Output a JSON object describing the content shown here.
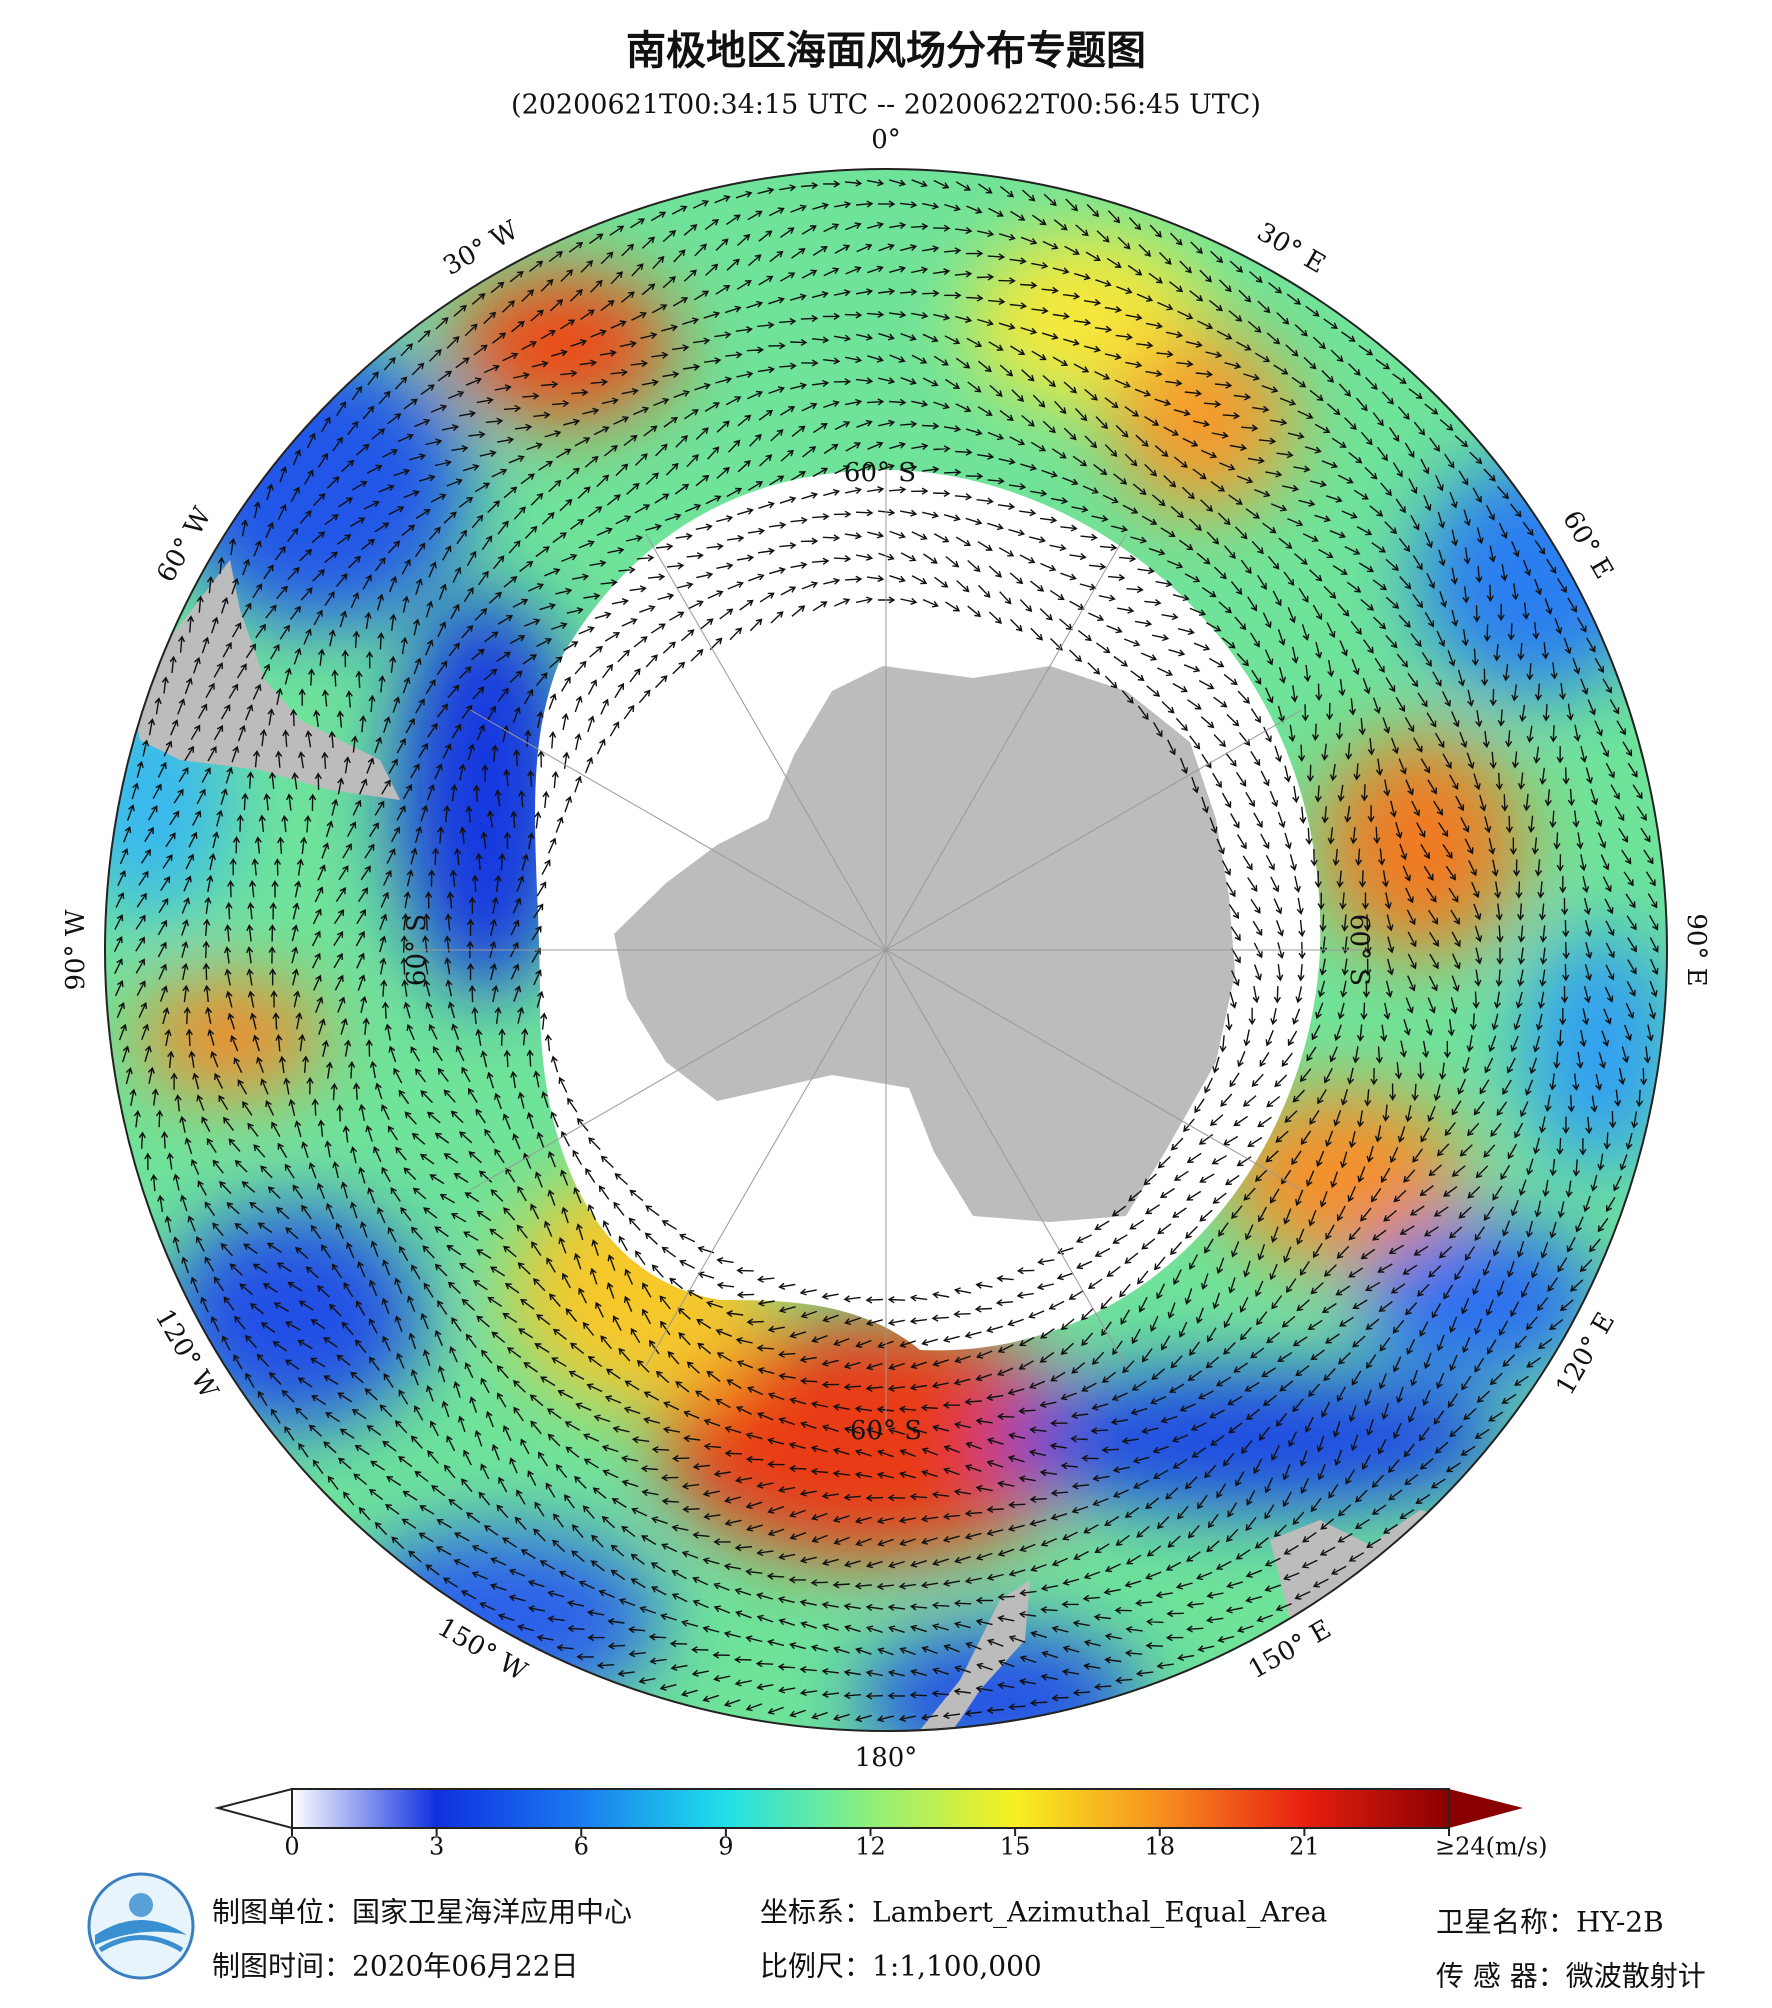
{
  "header": {
    "title": "南极地区海面风场分布专题图",
    "subtitle": "(20200621T00:34:15 UTC -- 20200622T00:56:45 UTC)"
  },
  "map": {
    "lon_labels": [
      "0°",
      "30° E",
      "60° E",
      "90° E",
      "120° E",
      "150° E",
      "180°",
      "150° W",
      "120° W",
      "90° W",
      "60° W",
      "30° W"
    ],
    "lat_label": "60° S"
  },
  "colorbar": {
    "range": [
      0,
      24
    ],
    "ticks": [
      0,
      3,
      6,
      9,
      12,
      15,
      18,
      21,
      {
        "value": 24,
        "label": "≥24(m/s)"
      }
    ],
    "colors": [
      "#ffffff",
      "#1030e0",
      "#1a7cf0",
      "#20e0e8",
      "#8ef07a",
      "#f8f020",
      "#f89020",
      "#e82010",
      "#8a0000"
    ]
  },
  "footer": {
    "unit": "制图单位：国家卫星海洋应用中心",
    "date": "制图时间：2020年06月22日",
    "crs": "坐标系：Lambert_Azimuthal_Equal_Area",
    "scale": "比例尺：1:1,100,000",
    "satellite": "卫星名称：HY-2B",
    "sensor": "传 感 器：微波散射计"
  }
}
